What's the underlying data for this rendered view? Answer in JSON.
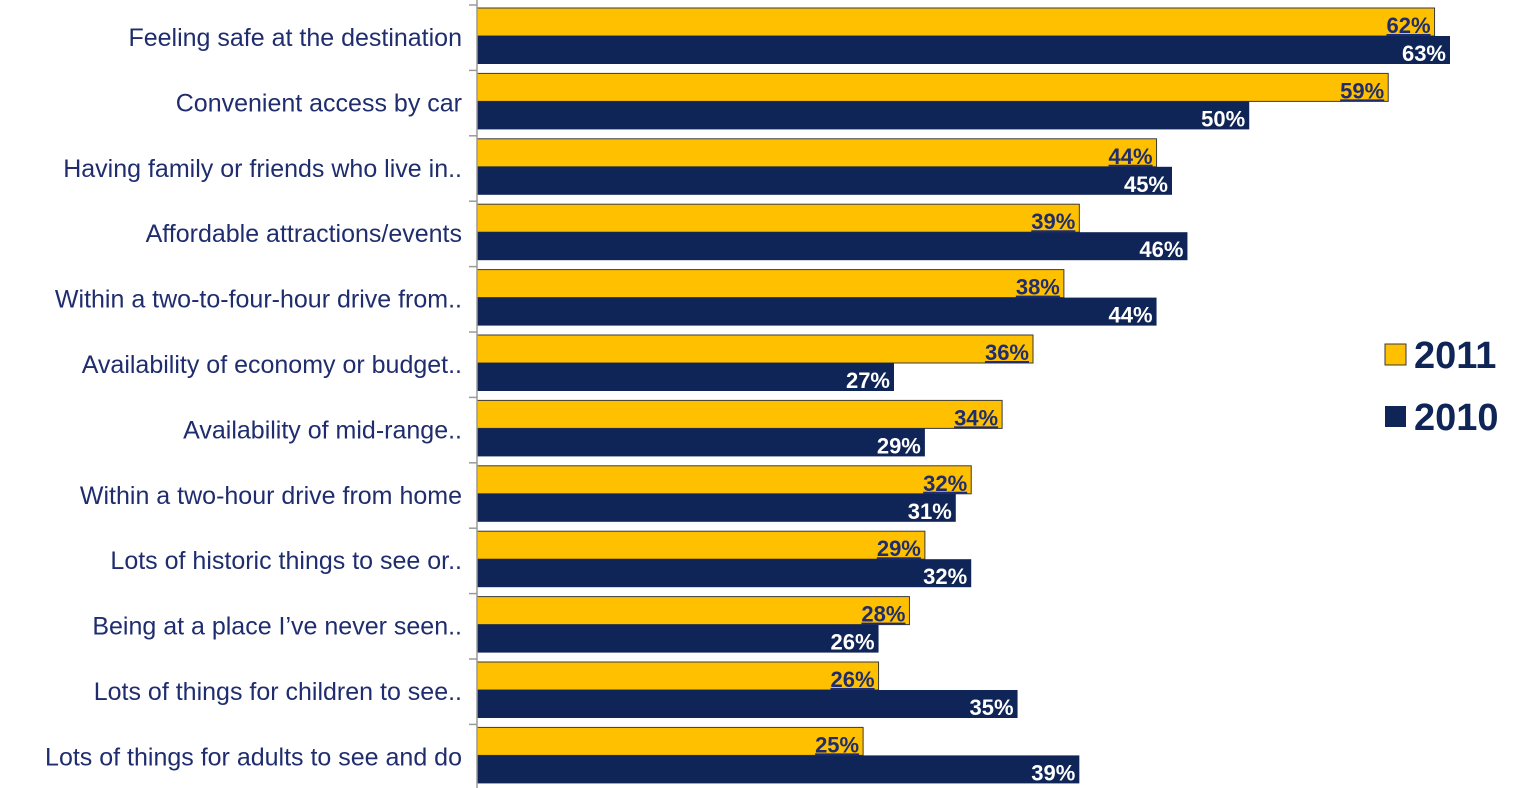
{
  "colors": {
    "y2011": "#ffc000",
    "y2010": "#0f2557",
    "label_dark": "#1f2d6e",
    "axis": "#9a9a9a"
  },
  "chart_data": {
    "type": "bar",
    "orientation": "horizontal",
    "categories": [
      "Feeling safe at the destination",
      "Convenient access by car",
      "Having family or friends who live in..",
      "Affordable attractions/events",
      "Within a two-to-four-hour drive from..",
      "Availability of economy or budget..",
      "Availability of mid-range..",
      "Within a two-hour drive from home",
      "Lots of historic things to see or..",
      "Being at a place I’ve never seen..",
      "Lots of things for children to see..",
      "Lots of things for adults to see and do"
    ],
    "series": [
      {
        "name": "2011",
        "values": [
          62,
          59,
          44,
          39,
          38,
          36,
          34,
          32,
          29,
          28,
          26,
          25
        ],
        "labels": [
          "62%",
          "59%",
          "44%",
          "39%",
          "38%",
          "36%",
          "34%",
          "32%",
          "29%",
          "28%",
          "26%",
          "25%"
        ]
      },
      {
        "name": "2010",
        "values": [
          63,
          50,
          45,
          46,
          44,
          27,
          29,
          31,
          32,
          26,
          35,
          39
        ],
        "labels": [
          "63%",
          "50%",
          "45%",
          "46%",
          "44%",
          "27%",
          "29%",
          "31%",
          "32%",
          "26%",
          "35%",
          "39%"
        ]
      }
    ],
    "xlim": [
      0,
      63
    ],
    "grid": false,
    "legend": {
      "position": "right",
      "entries": [
        "2011",
        "2010"
      ]
    }
  }
}
